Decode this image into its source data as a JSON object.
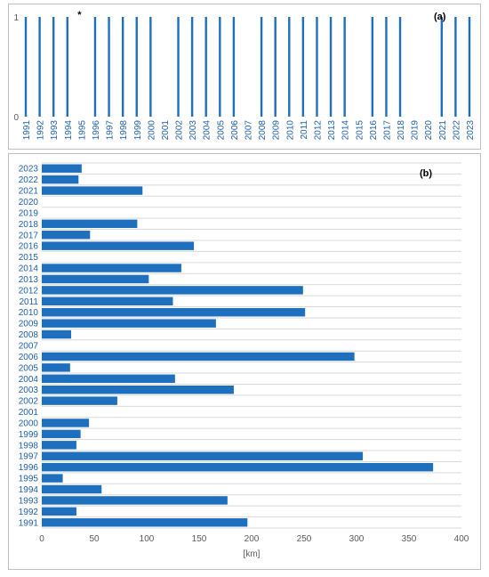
{
  "panel_a": {
    "label": "(a)",
    "asterisk": "*",
    "y_ticks": [
      "1",
      "0"
    ]
  },
  "panel_b": {
    "label": "(b)"
  },
  "colors": {
    "bar": "#1f6fbf",
    "grid": "#d9d9d9",
    "axis_text": "#1f5fa8"
  },
  "chart_data": [
    {
      "type": "bar",
      "title": "",
      "categories": [
        "1991",
        "1992",
        "1993",
        "1994",
        "1995",
        "1996",
        "1997",
        "1998",
        "1999",
        "2000",
        "2001",
        "2002",
        "2003",
        "2004",
        "2005",
        "2006",
        "2007",
        "2008",
        "2009",
        "2010",
        "2011",
        "2012",
        "2013",
        "2014",
        "2015",
        "2016",
        "2017",
        "2018",
        "2019",
        "2020",
        "2021",
        "2022",
        "2023"
      ],
      "values": [
        1,
        1,
        1,
        1,
        0,
        1,
        1,
        1,
        1,
        1,
        0,
        1,
        1,
        1,
        1,
        1,
        0,
        1,
        1,
        1,
        1,
        1,
        1,
        1,
        0,
        1,
        1,
        1,
        0,
        0,
        1,
        1,
        1
      ],
      "ylim": [
        0,
        1
      ],
      "yticks": [
        0,
        1
      ],
      "xlabel": "",
      "ylabel": "",
      "legend": "none"
    },
    {
      "type": "bar",
      "orientation": "horizontal",
      "title": "",
      "categories": [
        "1991",
        "1992",
        "1993",
        "1994",
        "1995",
        "1996",
        "1997",
        "1998",
        "1999",
        "2000",
        "2001",
        "2002",
        "2003",
        "2004",
        "2005",
        "2006",
        "2007",
        "2008",
        "2009",
        "2010",
        "2011",
        "2012",
        "2013",
        "2014",
        "2015",
        "2016",
        "2017",
        "2018",
        "2019",
        "2020",
        "2021",
        "2022",
        "2023"
      ],
      "values": [
        196,
        33,
        177,
        57,
        20,
        373,
        306,
        33,
        37,
        45,
        0,
        72,
        183,
        127,
        27,
        298,
        0,
        28,
        166,
        251,
        125,
        249,
        102,
        133,
        0,
        145,
        46,
        91,
        0,
        0,
        96,
        35,
        38
      ],
      "xlim": [
        0,
        400
      ],
      "xticks": [
        0,
        50,
        100,
        150,
        200,
        250,
        300,
        350,
        400
      ],
      "xlabel": "[km]",
      "ylabel": "",
      "grid": true,
      "legend": "none"
    }
  ]
}
